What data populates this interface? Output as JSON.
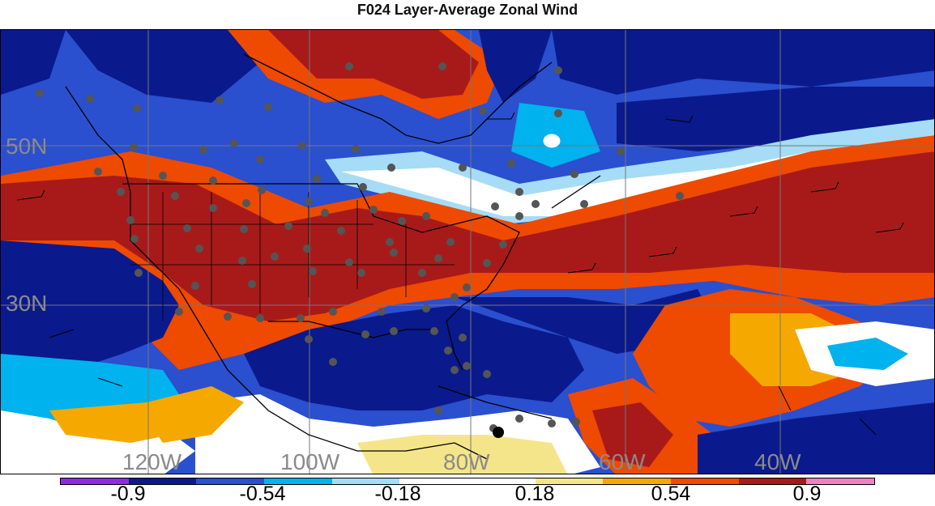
{
  "title": "F024 Layer-Average Zonal Wind",
  "map": {
    "lat_labels": [
      "50N",
      "30N"
    ],
    "lon_labels": [
      "120W",
      "100W",
      "80W",
      "60W",
      "40W"
    ]
  },
  "colorbar": {
    "colors": [
      "#8a2be2",
      "#0a1a8c",
      "#2a4fcf",
      "#00b2ee",
      "#a6dcf5",
      "#ffffff",
      "#ffffff",
      "#f5e58a",
      "#f5a800",
      "#ee4a00",
      "#a81a1a",
      "#f080c0"
    ],
    "labels": [
      "-0.9",
      "-0.54",
      "-0.18",
      "0.18",
      "0.54",
      "0.9"
    ]
  },
  "palette": {
    "strong_negative": "#0a1a8c",
    "negative": "#2a4fcf",
    "weak_negative": "#00b2ee",
    "near_zero": "#ffffff",
    "weak_positive": "#f5e58a",
    "positive": "#f5a800",
    "strong_positive": "#ee4a00",
    "max_positive": "#a81a1a"
  }
}
